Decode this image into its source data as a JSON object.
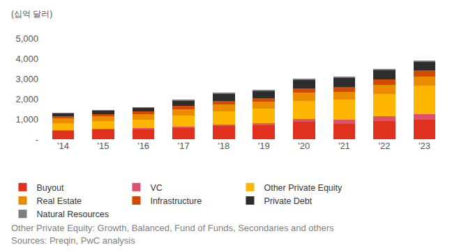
{
  "chart_data": {
    "type": "bar",
    "stacked": true,
    "subtitle": "(십억 달러)",
    "annotations": [
      "Other Private Equity: Growth, Balanced, Fund of Funds, Secondaries and others",
      "Sources: Preqin, PwC analysis"
    ],
    "categories": [
      "'14",
      "'15",
      "'16",
      "'17",
      "'18",
      "'19",
      "'20",
      "'21",
      "'22",
      "'23"
    ],
    "series": [
      {
        "name": "Buyout",
        "color": "#e0301e",
        "values": [
          420,
          470,
          500,
          560,
          650,
          700,
          850,
          750,
          900,
          950
        ]
      },
      {
        "name": "VC",
        "color": "#db536a",
        "values": [
          40,
          40,
          50,
          60,
          90,
          110,
          150,
          200,
          250,
          300
        ]
      },
      {
        "name": "Other Private Equity",
        "color": "#ffb600",
        "values": [
          330,
          370,
          420,
          550,
          650,
          700,
          900,
          1000,
          1100,
          1400
        ]
      },
      {
        "name": "Real Estate",
        "color": "#eb8c00",
        "values": [
          250,
          260,
          280,
          320,
          350,
          360,
          400,
          400,
          450,
          450
        ]
      },
      {
        "name": "Infrastructure",
        "color": "#d04a02",
        "values": [
          100,
          110,
          120,
          150,
          170,
          180,
          220,
          230,
          250,
          300
        ]
      },
      {
        "name": "Private Debt",
        "color": "#2d2d2d",
        "values": [
          120,
          150,
          180,
          250,
          320,
          330,
          400,
          440,
          470,
          430
        ]
      },
      {
        "name": "Natural Resources",
        "color": "#7d7d7d",
        "values": [
          40,
          50,
          50,
          60,
          70,
          70,
          80,
          80,
          80,
          70
        ]
      }
    ],
    "ylim": [
      0,
      5000
    ],
    "yticks": [
      {
        "value": 0,
        "label": "-"
      },
      {
        "value": 1000,
        "label": "1,000"
      },
      {
        "value": 2000,
        "label": "2,000"
      },
      {
        "value": 3000,
        "label": "3,000"
      },
      {
        "value": 4000,
        "label": "4,000"
      },
      {
        "value": 5000,
        "label": "5,000"
      }
    ],
    "grid": false,
    "legend": "bottom"
  }
}
